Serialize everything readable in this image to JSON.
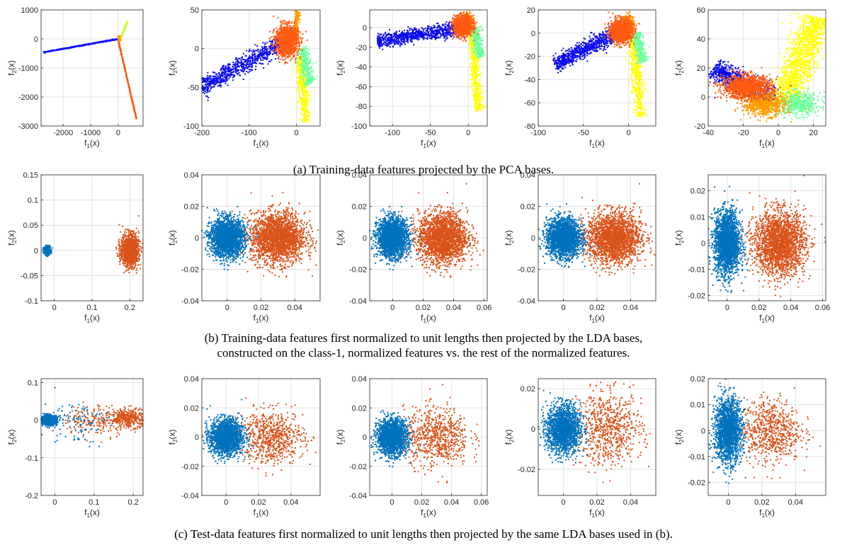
{
  "captions": {
    "a": "(a) Training-data features projected by the PCA bases.",
    "b_line1": "(b) Training-data features first normalized to unit lengths then projected by the LDA bases,",
    "b_line2": "constructed on the class-1, normalized features vs. the rest of the normalized features.",
    "c": "(c) Test-data features first normalized to unit lengths then projected by the same LDA bases used in (b)."
  },
  "axis_labels": {
    "x": "f1(x)",
    "y": "f2(x)"
  },
  "colors": {
    "class1": "#0072BD",
    "rest": "#D95319",
    "pca_classes": [
      "#0000ff",
      "#2020e8",
      "#ff5a10",
      "#ff9d00",
      "#ffff00",
      "#c8ff3a",
      "#6dffa0",
      "#ffe000"
    ]
  },
  "chart_data": [
    {
      "row": "a",
      "col": 1,
      "type": "scatter",
      "xlim": [
        -2800,
        900
      ],
      "ylim": [
        -3000,
        1000
      ],
      "xticks": [
        -2000,
        -1000,
        0
      ],
      "yticks": [
        1000,
        0,
        -1000,
        -2000,
        -3000
      ],
      "grid": true,
      "clusters": [
        {
          "shape": "line",
          "color": "#1010ff",
          "from": [
            -2700,
            -460
          ],
          "to": [
            0,
            0
          ],
          "spread": 8,
          "n": 500
        },
        {
          "shape": "line",
          "color": "#ff5a10",
          "from": [
            0,
            -50
          ],
          "to": [
            660,
            -2750
          ],
          "spread": 6,
          "n": 400
        },
        {
          "shape": "line",
          "color": "#c8ff3a",
          "from": [
            120,
            80
          ],
          "to": [
            330,
            600
          ],
          "spread": 10,
          "n": 150
        },
        {
          "shape": "blob",
          "color": "#ff9d00",
          "cx": 40,
          "cy": 20,
          "sx": 25,
          "sy": 40,
          "n": 60
        }
      ]
    },
    {
      "row": "a",
      "col": 2,
      "type": "scatter",
      "xlim": [
        -200,
        50
      ],
      "ylim": [
        -100,
        50
      ],
      "xticks": [
        -200,
        -100,
        0
      ],
      "yticks": [
        50,
        0,
        -50,
        -100
      ],
      "grid": true,
      "clusters": [
        {
          "shape": "line",
          "color": "#0a0aee",
          "from": [
            -200,
            -50
          ],
          "to": [
            -5,
            15
          ],
          "spread": 6,
          "n": 900
        },
        {
          "shape": "line",
          "color": "#ffff00",
          "from": [
            8,
            -10
          ],
          "to": [
            20,
            -95
          ],
          "spread": 5,
          "n": 500
        },
        {
          "shape": "line",
          "color": "#6dffa0",
          "from": [
            10,
            0
          ],
          "to": [
            30,
            -45
          ],
          "spread": 6,
          "n": 300
        },
        {
          "shape": "line",
          "color": "#ff9d00",
          "from": [
            -5,
            10
          ],
          "to": [
            3,
            48
          ],
          "spread": 3,
          "n": 200
        },
        {
          "shape": "blob",
          "color": "#ff5a10",
          "cx": -20,
          "cy": 10,
          "sx": 12,
          "sy": 10,
          "n": 1200
        }
      ]
    },
    {
      "row": "a",
      "col": 3,
      "type": "scatter",
      "xlim": [
        -130,
        25
      ],
      "ylim": [
        -100,
        18
      ],
      "xticks": [
        -100,
        -50,
        0
      ],
      "yticks": [
        0,
        -20,
        -40,
        -60,
        -80,
        -100
      ],
      "grid": true,
      "clusters": [
        {
          "shape": "line",
          "color": "#0a0aee",
          "from": [
            -120,
            -14
          ],
          "to": [
            -5,
            0
          ],
          "spread": 3.5,
          "n": 900
        },
        {
          "shape": "line",
          "color": "#ffff00",
          "from": [
            5,
            -5
          ],
          "to": [
            14,
            -85
          ],
          "spread": 3,
          "n": 500
        },
        {
          "shape": "line",
          "color": "#6dffa0",
          "from": [
            8,
            0
          ],
          "to": [
            16,
            -30
          ],
          "spread": 3,
          "n": 300
        },
        {
          "shape": "blob",
          "color": "#ff9d00",
          "cx": 0,
          "cy": 7,
          "sx": 3,
          "sy": 4,
          "n": 250
        },
        {
          "shape": "blob",
          "color": "#ff5a10",
          "cx": -7,
          "cy": 2,
          "sx": 6,
          "sy": 5,
          "n": 1200
        }
      ]
    },
    {
      "row": "a",
      "col": 4,
      "type": "scatter",
      "xlim": [
        -100,
        30
      ],
      "ylim": [
        -80,
        20
      ],
      "xticks": [
        -100,
        -50,
        0
      ],
      "yticks": [
        20,
        0,
        -20,
        -40,
        -60,
        -80
      ],
      "grid": true,
      "clusters": [
        {
          "shape": "line",
          "color": "#0a0aee",
          "from": [
            -82,
            -27
          ],
          "to": [
            -5,
            3
          ],
          "spread": 3.5,
          "n": 900
        },
        {
          "shape": "line",
          "color": "#ffff00",
          "from": [
            5,
            -5
          ],
          "to": [
            14,
            -72
          ],
          "spread": 3,
          "n": 500
        },
        {
          "shape": "line",
          "color": "#6dffa0",
          "from": [
            8,
            0
          ],
          "to": [
            16,
            -25
          ],
          "spread": 3,
          "n": 300
        },
        {
          "shape": "blob",
          "color": "#ff9d00",
          "cx": 0,
          "cy": 8,
          "sx": 3,
          "sy": 4,
          "n": 250
        },
        {
          "shape": "blob",
          "color": "#ff5a10",
          "cx": -8,
          "cy": 2,
          "sx": 6,
          "sy": 5,
          "n": 1200
        }
      ]
    },
    {
      "row": "a",
      "col": 5,
      "type": "scatter",
      "xlim": [
        -40,
        27
      ],
      "ylim": [
        -20,
        60
      ],
      "xticks": [
        -40,
        -20,
        0,
        20
      ],
      "yticks": [
        60,
        40,
        20,
        0,
        -20
      ],
      "grid": true,
      "clusters": [
        {
          "shape": "line",
          "color": "#0a0aee",
          "from": [
            -37,
            20
          ],
          "to": [
            -3,
            -2
          ],
          "spread": 3.5,
          "n": 800
        },
        {
          "shape": "line",
          "color": "#ffff00",
          "from": [
            3,
            -5
          ],
          "to": [
            22,
            55
          ],
          "spread": 4.5,
          "n": 1400
        },
        {
          "shape": "blob",
          "color": "#6dffa0",
          "cx": 12,
          "cy": -5,
          "sx": 6,
          "sy": 4,
          "n": 500
        },
        {
          "shape": "blob",
          "color": "#ff9d00",
          "cx": -8,
          "cy": -5,
          "sx": 6,
          "sy": 4,
          "n": 700
        },
        {
          "shape": "blob",
          "color": "#ff5a10",
          "cx": -18,
          "cy": 7,
          "sx": 7,
          "sy": 4,
          "n": 1200
        }
      ]
    },
    {
      "row": "b",
      "col": 1,
      "type": "scatter",
      "xlim": [
        -0.035,
        0.235
      ],
      "ylim": [
        -0.1,
        0.15
      ],
      "xticks": [
        0,
        0.1,
        0.2
      ],
      "yticks": [
        0.15,
        0.1,
        0.05,
        0,
        -0.05,
        -0.1
      ],
      "grid": true,
      "clusters": [
        {
          "shape": "blob",
          "color": "#0072BD",
          "cx": -0.018,
          "cy": 0.0,
          "sx": 0.004,
          "sy": 0.004,
          "n": 500
        },
        {
          "shape": "blob",
          "color": "#D95319",
          "cx": 0.2,
          "cy": 0.0,
          "sx": 0.012,
          "sy": 0.016,
          "n": 1100
        }
      ]
    },
    {
      "row": "b",
      "col": 2,
      "type": "scatter",
      "xlim": [
        -0.015,
        0.055
      ],
      "ylim": [
        -0.04,
        0.04
      ],
      "xticks": [
        0,
        0.02,
        0.04
      ],
      "yticks": [
        0.04,
        0.02,
        0,
        -0.02,
        -0.04
      ],
      "grid": true,
      "clusters": [
        {
          "shape": "blob",
          "color": "#D95319",
          "cx": 0.03,
          "cy": 0.0,
          "sx": 0.008,
          "sy": 0.008,
          "n": 2200
        },
        {
          "shape": "blob",
          "color": "#0072BD",
          "cx": 0.0,
          "cy": 0.0,
          "sx": 0.005,
          "sy": 0.006,
          "n": 2200
        }
      ]
    },
    {
      "row": "b",
      "col": 3,
      "type": "scatter",
      "xlim": [
        -0.015,
        0.062
      ],
      "ylim": [
        -0.04,
        0.04
      ],
      "xticks": [
        0,
        0.02,
        0.04,
        0.06
      ],
      "yticks": [
        0.04,
        0.02,
        0,
        -0.02,
        -0.04
      ],
      "grid": true,
      "clusters": [
        {
          "shape": "blob",
          "color": "#D95319",
          "cx": 0.033,
          "cy": 0.0,
          "sx": 0.008,
          "sy": 0.008,
          "n": 2200
        },
        {
          "shape": "blob",
          "color": "#0072BD",
          "cx": 0.0,
          "cy": 0.0,
          "sx": 0.005,
          "sy": 0.006,
          "n": 2200
        }
      ]
    },
    {
      "row": "b",
      "col": 4,
      "type": "scatter",
      "xlim": [
        -0.015,
        0.055
      ],
      "ylim": [
        -0.04,
        0.04
      ],
      "xticks": [
        0,
        0.02,
        0.04
      ],
      "yticks": [
        0.04,
        0.02,
        0,
        -0.02,
        -0.04
      ],
      "grid": true,
      "clusters": [
        {
          "shape": "blob",
          "color": "#D95319",
          "cx": 0.03,
          "cy": 0.0,
          "sx": 0.008,
          "sy": 0.008,
          "n": 2200
        },
        {
          "shape": "blob",
          "color": "#0072BD",
          "cx": 0.0,
          "cy": 0.0,
          "sx": 0.005,
          "sy": 0.006,
          "n": 2200
        }
      ]
    },
    {
      "row": "b",
      "col": 5,
      "type": "scatter",
      "xlim": [
        -0.012,
        0.062
      ],
      "ylim": [
        -0.022,
        0.026
      ],
      "xticks": [
        0,
        0.02,
        0.04,
        0.06
      ],
      "yticks": [
        0.02,
        0.01,
        0,
        -0.01,
        -0.02
      ],
      "grid": true,
      "clusters": [
        {
          "shape": "blob",
          "color": "#D95319",
          "cx": 0.033,
          "cy": 0.0,
          "sx": 0.008,
          "sy": 0.006,
          "n": 2200
        },
        {
          "shape": "blob",
          "color": "#0072BD",
          "cx": 0.0,
          "cy": 0.0,
          "sx": 0.004,
          "sy": 0.006,
          "n": 2200
        }
      ]
    },
    {
      "row": "c",
      "col": 1,
      "type": "scatter",
      "xlim": [
        -0.035,
        0.225
      ],
      "ylim": [
        -0.2,
        0.11
      ],
      "xticks": [
        0,
        0.1,
        0.2
      ],
      "yticks": [
        0.1,
        0,
        -0.1,
        -0.2
      ],
      "grid": true,
      "clusters": [
        {
          "shape": "blob",
          "color": "#D95319",
          "cx": 0.19,
          "cy": 0.005,
          "sx": 0.025,
          "sy": 0.012,
          "n": 350
        },
        {
          "shape": "blob",
          "color": "#D95319",
          "cx": 0.11,
          "cy": 0.0,
          "sx": 0.045,
          "sy": 0.02,
          "n": 200
        },
        {
          "shape": "blob",
          "color": "#0072BD",
          "cx": 0.05,
          "cy": -0.005,
          "sx": 0.04,
          "sy": 0.03,
          "n": 100
        },
        {
          "shape": "blob",
          "color": "#0072BD",
          "cx": -0.015,
          "cy": 0.0,
          "sx": 0.01,
          "sy": 0.006,
          "n": 900
        }
      ]
    },
    {
      "row": "c",
      "col": 2,
      "type": "scatter",
      "xlim": [
        -0.015,
        0.058
      ],
      "ylim": [
        -0.04,
        0.04
      ],
      "xticks": [
        0,
        0.02,
        0.04
      ],
      "yticks": [
        0.04,
        0.02,
        0,
        -0.02,
        -0.04
      ],
      "grid": true,
      "clusters": [
        {
          "shape": "blob",
          "color": "#D95319",
          "cx": 0.028,
          "cy": 0.0,
          "sx": 0.01,
          "sy": 0.009,
          "n": 700
        },
        {
          "shape": "blob",
          "color": "#0072BD",
          "cx": 0.0,
          "cy": 0.0,
          "sx": 0.005,
          "sy": 0.006,
          "n": 1800
        }
      ]
    },
    {
      "row": "c",
      "col": 3,
      "type": "scatter",
      "xlim": [
        -0.015,
        0.064
      ],
      "ylim": [
        -0.04,
        0.04
      ],
      "xticks": [
        0,
        0.02,
        0.04,
        0.06
      ],
      "yticks": [
        0.04,
        0.02,
        0,
        -0.02,
        -0.04
      ],
      "grid": true,
      "clusters": [
        {
          "shape": "blob",
          "color": "#D95319",
          "cx": 0.03,
          "cy": 0.0,
          "sx": 0.011,
          "sy": 0.01,
          "n": 700
        },
        {
          "shape": "blob",
          "color": "#0072BD",
          "cx": 0.0,
          "cy": 0.0,
          "sx": 0.005,
          "sy": 0.006,
          "n": 1800
        }
      ]
    },
    {
      "row": "c",
      "col": 4,
      "type": "scatter",
      "xlim": [
        -0.015,
        0.055
      ],
      "ylim": [
        -0.033,
        0.025
      ],
      "xticks": [
        0,
        0.02,
        0.04
      ],
      "yticks": [
        0.02,
        0,
        -0.02
      ],
      "grid": true,
      "clusters": [
        {
          "shape": "blob",
          "color": "#D95319",
          "cx": 0.027,
          "cy": 0.0,
          "sx": 0.01,
          "sy": 0.009,
          "n": 700
        },
        {
          "shape": "blob",
          "color": "#0072BD",
          "cx": 0.0,
          "cy": 0.0,
          "sx": 0.005,
          "sy": 0.006,
          "n": 1800
        }
      ]
    },
    {
      "row": "c",
      "col": 5,
      "type": "scatter",
      "xlim": [
        -0.012,
        0.058
      ],
      "ylim": [
        -0.025,
        0.02
      ],
      "xticks": [
        0,
        0.02,
        0.04
      ],
      "yticks": [
        0.02,
        0.01,
        0,
        -0.01,
        -0.02
      ],
      "grid": true,
      "clusters": [
        {
          "shape": "blob",
          "color": "#D95319",
          "cx": 0.025,
          "cy": 0.0,
          "sx": 0.009,
          "sy": 0.006,
          "n": 700
        },
        {
          "shape": "blob",
          "color": "#0072BD",
          "cx": 0.0,
          "cy": 0.0,
          "sx": 0.004,
          "sy": 0.006,
          "n": 1800
        }
      ]
    }
  ]
}
